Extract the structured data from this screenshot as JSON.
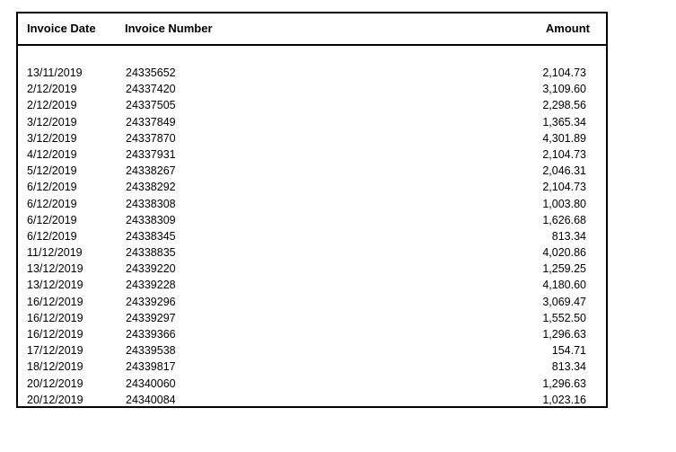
{
  "table": {
    "headers": {
      "date": "Invoice Date",
      "number": "Invoice Number",
      "amount": "Amount"
    },
    "rows": [
      {
        "date": "13/11/2019",
        "number": "24335652",
        "amount": "2,104.73"
      },
      {
        "date": "2/12/2019",
        "number": "24337420",
        "amount": "3,109.60"
      },
      {
        "date": "2/12/2019",
        "number": "24337505",
        "amount": "2,298.56"
      },
      {
        "date": "3/12/2019",
        "number": "24337849",
        "amount": "1,365.34"
      },
      {
        "date": "3/12/2019",
        "number": "24337870",
        "amount": "4,301.89"
      },
      {
        "date": "4/12/2019",
        "number": "24337931",
        "amount": "2,104.73"
      },
      {
        "date": "5/12/2019",
        "number": "24338267",
        "amount": "2,046.31"
      },
      {
        "date": "6/12/2019",
        "number": "24338292",
        "amount": "2,104.73"
      },
      {
        "date": "6/12/2019",
        "number": "24338308",
        "amount": "1,003.80"
      },
      {
        "date": "6/12/2019",
        "number": "24338309",
        "amount": "1,626.68"
      },
      {
        "date": "6/12/2019",
        "number": "24338345",
        "amount": "813.34"
      },
      {
        "date": "11/12/2019",
        "number": "24338835",
        "amount": "4,020.86"
      },
      {
        "date": "13/12/2019",
        "number": "24339220",
        "amount": "1,259.25"
      },
      {
        "date": "13/12/2019",
        "number": "24339228",
        "amount": "4,180.60"
      },
      {
        "date": "16/12/2019",
        "number": "24339296",
        "amount": "3,069.47"
      },
      {
        "date": "16/12/2019",
        "number": "24339297",
        "amount": "1,552.50"
      },
      {
        "date": "16/12/2019",
        "number": "24339366",
        "amount": "1,296.63"
      },
      {
        "date": "17/12/2019",
        "number": "24339538",
        "amount": "154.71"
      },
      {
        "date": "18/12/2019",
        "number": "24339817",
        "amount": "813.34"
      },
      {
        "date": "20/12/2019",
        "number": "24340060",
        "amount": "1,296.63"
      },
      {
        "date": "20/12/2019",
        "number": "24340084",
        "amount": "1,023.16"
      }
    ]
  }
}
